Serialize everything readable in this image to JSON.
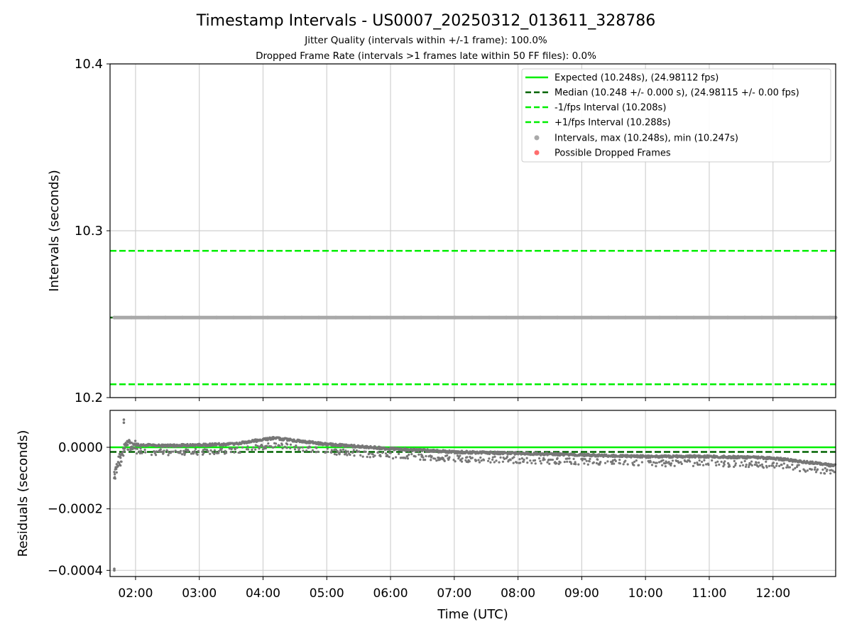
{
  "chart_data": [
    {
      "type": "scatter",
      "title": "Timestamp Intervals - US0007_20250312_013611_328786",
      "subtitle_1": "Jitter Quality (intervals within +/-1 frame): 100.0%",
      "subtitle_2": "Dropped Frame Rate (intervals >1 frames late within 50 FF files): 0.0%",
      "ylabel": "Intervals (seconds)",
      "ylim": [
        10.2,
        10.4
      ],
      "yticks": [
        "10.2",
        "10.3",
        "10.4"
      ],
      "xlim": [
        "01:36",
        "12:59"
      ],
      "grid": true,
      "legend_position": "top-right",
      "lines": [
        {
          "name": "Expected (10.248s), (24.98112 fps)",
          "y": 10.248,
          "style": "solid",
          "color": "#00ee00"
        },
        {
          "name": "Median (10.248 +/- 0.000 s), (24.98115 +/- 0.00 fps)",
          "y": 10.248,
          "style": "dashed",
          "color": "#006400"
        },
        {
          "name": "-1/fps Interval (10.208s)",
          "y": 10.208,
          "style": "dashed",
          "color": "#00ee00"
        },
        {
          "name": "+1/fps Interval (10.288s)",
          "y": 10.288,
          "style": "dashed",
          "color": "#00ee00"
        }
      ],
      "series": [
        {
          "name": "Intervals, max (10.248s), min (10.247s)",
          "color": "#a9a9a9",
          "x_range": [
            "01:40",
            "12:59"
          ],
          "y_values": [
            10.248,
            10.247
          ]
        },
        {
          "name": "Possible Dropped Frames",
          "color": "#ff5555",
          "points": []
        }
      ]
    },
    {
      "type": "scatter",
      "xlabel": "Time (UTC)",
      "ylabel": "Residuals (seconds)",
      "ylim": [
        -0.00042,
        0.00012
      ],
      "yticks": [
        "−0.0004",
        "−0.0002",
        "0.0000"
      ],
      "xticks": [
        "02:00",
        "03:00",
        "04:00",
        "05:00",
        "06:00",
        "07:00",
        "08:00",
        "09:00",
        "10:00",
        "11:00",
        "12:00"
      ],
      "grid": true,
      "lines": [
        {
          "name": "Expected",
          "y": 0.0,
          "style": "solid",
          "color": "#00ee00"
        },
        {
          "name": "Median",
          "y": -1.5e-05,
          "style": "dashed",
          "color": "#006400"
        }
      ],
      "series": [
        {
          "name": "Residuals",
          "color": "#777777",
          "trend": [
            {
              "x": "01:40",
              "y": -8e-05
            },
            {
              "x": "01:50",
              "y": 1e-05
            },
            {
              "x": "02:30",
              "y": 5e-06
            },
            {
              "x": "03:30",
              "y": 1e-05
            },
            {
              "x": "04:10",
              "y": 3e-05
            },
            {
              "x": "05:00",
              "y": 1e-05
            },
            {
              "x": "06:00",
              "y": -5e-06
            },
            {
              "x": "07:00",
              "y": -1.5e-05
            },
            {
              "x": "08:00",
              "y": -2e-05
            },
            {
              "x": "09:00",
              "y": -2.5e-05
            },
            {
              "x": "10:00",
              "y": -3e-05
            },
            {
              "x": "11:00",
              "y": -3e-05
            },
            {
              "x": "12:00",
              "y": -3.5e-05
            },
            {
              "x": "12:59",
              "y": -6e-05
            }
          ],
          "outliers": [
            {
              "x": "01:40",
              "y": -0.0004
            },
            {
              "x": "01:40",
              "y": -0.000395
            },
            {
              "x": "01:49",
              "y": 8e-05
            },
            {
              "x": "01:49",
              "y": 9e-05
            },
            {
              "x": "01:40",
              "y": -0.0001
            }
          ]
        }
      ]
    }
  ]
}
